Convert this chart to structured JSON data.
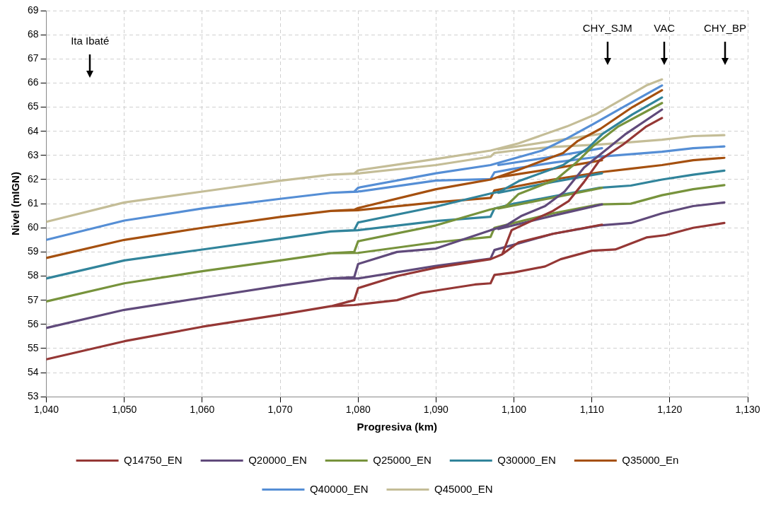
{
  "chart_data": {
    "type": "line",
    "xlabel": "Progresiva (km)",
    "ylabel": "Nivel (mIGN)",
    "xlim": [
      1040,
      1130
    ],
    "xticks": [
      {
        "value": 1040,
        "label": "1,040"
      },
      {
        "value": 1050,
        "label": "1,050"
      },
      {
        "value": 1060,
        "label": "1,060"
      },
      {
        "value": 1070,
        "label": "1,070"
      },
      {
        "value": 1080,
        "label": "1,080"
      },
      {
        "value": 1090,
        "label": "1,090"
      },
      {
        "value": 1100,
        "label": "1,100"
      },
      {
        "value": 1110,
        "label": "1,110"
      },
      {
        "value": 1120,
        "label": "1,120"
      },
      {
        "value": 1130,
        "label": "1,130"
      }
    ],
    "ylim": [
      53,
      69
    ],
    "yticks": [
      53,
      54,
      55,
      56,
      57,
      58,
      59,
      60,
      61,
      62,
      63,
      64,
      65,
      66,
      67,
      68,
      69
    ],
    "grid": true,
    "legend": "bottom",
    "marker": "none",
    "line_style": "solid",
    "ref_lines": [
      {
        "axis": "x",
        "value": 1045.6,
        "label": "Ita Ibaté"
      },
      {
        "axis": "x",
        "value": 1112,
        "label": "CHY_SJM"
      },
      {
        "axis": "x",
        "value": 1119.3,
        "label": "VAC"
      },
      {
        "axis": "x",
        "value": 1127.1,
        "label": "CHY_BP"
      }
    ],
    "series": [
      {
        "name": "Q14750_EN",
        "color": "#953735",
        "x": [
          1040,
          1050,
          1060,
          1070,
          1076.5,
          1079.5,
          1080,
          1085,
          1090,
          1097,
          1098.5,
          1099.7,
          1105,
          1107,
          1109,
          1111,
          1114,
          1117,
          1119,
          null,
          1098.5,
          1100.6,
          1105,
          1111.3,
          null,
          1076.5,
          1079.5,
          1085,
          1088,
          1090,
          1095,
          1097,
          1097.5,
          1100,
          1104,
          1106,
          1110,
          1113,
          1117,
          1119.5,
          1123,
          1127
        ],
        "values": [
          54.55,
          55.3,
          55.9,
          56.4,
          56.75,
          57.0,
          57.5,
          58.0,
          58.35,
          58.7,
          58.9,
          59.9,
          60.7,
          61.1,
          61.9,
          62.8,
          63.45,
          64.2,
          64.55,
          null,
          58.9,
          59.4,
          59.75,
          60.13,
          null,
          56.75,
          56.8,
          57.0,
          57.3,
          57.4,
          57.65,
          57.7,
          58.05,
          58.15,
          58.4,
          58.7,
          59.05,
          59.1,
          59.6,
          59.7,
          60.0,
          60.2
        ]
      },
      {
        "name": "Q20000_EN",
        "color": "#604a7b",
        "x": [
          1040,
          1050,
          1060,
          1070,
          1076.5,
          1079.5,
          1080,
          1085,
          1090,
          1097,
          1099,
          1101,
          1104,
          1106.5,
          1109,
          1111.3,
          1114.4,
          1119,
          null,
          1098,
          1105,
          1111.3,
          null,
          1076.5,
          1080,
          1090,
          1097,
          1097.5,
          1100,
          1105,
          1111,
          1115,
          1119,
          1123,
          1127
        ],
        "values": [
          55.85,
          56.6,
          57.1,
          57.6,
          57.9,
          57.95,
          58.5,
          59.0,
          59.14,
          59.9,
          60.1,
          60.5,
          60.9,
          61.5,
          62.5,
          63.1,
          63.9,
          64.9,
          null,
          59.95,
          60.5,
          60.97,
          null,
          57.9,
          57.9,
          58.42,
          58.72,
          59.08,
          59.3,
          59.75,
          60.1,
          60.2,
          60.6,
          60.9,
          61.05
        ]
      },
      {
        "name": "Q25000_EN",
        "color": "#77933c",
        "x": [
          1040,
          1050,
          1060,
          1070,
          1076.5,
          1079.5,
          1080,
          1090,
          1097,
          1099,
          1100.6,
          1105.4,
          1108,
          1110.2,
          1113.4,
          1119,
          null,
          1098,
          1105,
          1111.3,
          null,
          1076.5,
          1080,
          1090,
          1097,
          1097.5,
          1100,
          1105,
          1111,
          1115,
          1119,
          1123,
          1127
        ],
        "values": [
          56.95,
          57.7,
          58.2,
          58.65,
          58.95,
          59.0,
          59.44,
          60.1,
          60.76,
          60.9,
          61.4,
          62.0,
          62.7,
          63.4,
          64.2,
          65.17,
          null,
          60.8,
          61.25,
          61.66,
          null,
          58.95,
          58.96,
          59.4,
          59.62,
          60.0,
          60.2,
          60.6,
          60.97,
          61.0,
          61.35,
          61.6,
          61.77
        ]
      },
      {
        "name": "Q30000_EN",
        "color": "#31849b",
        "x": [
          1040,
          1050,
          1060,
          1070,
          1076.5,
          1079.5,
          1080,
          1090,
          1097,
          1098.2,
          1100.6,
          1106.3,
          1109.5,
          1111.4,
          1115.2,
          1119,
          null,
          1098,
          1105,
          1111.3,
          null,
          1076.5,
          1080,
          1090,
          1097,
          1097.5,
          1100,
          1105,
          1111,
          1115,
          1119,
          1123,
          1127
        ],
        "values": [
          57.9,
          58.65,
          59.1,
          59.55,
          59.85,
          59.9,
          60.22,
          60.88,
          61.42,
          61.5,
          61.93,
          62.6,
          63.3,
          63.9,
          64.7,
          65.4,
          null,
          61.45,
          61.9,
          62.26,
          null,
          59.85,
          59.9,
          60.28,
          60.46,
          60.8,
          61.0,
          61.3,
          61.66,
          61.75,
          62.0,
          62.2,
          62.37
        ]
      },
      {
        "name": "Q35000_En",
        "color": "#a5500f",
        "x": [
          1040,
          1050,
          1060,
          1070,
          1076.5,
          1079.5,
          1080,
          1090,
          1097,
          1100.6,
          1106.3,
          1108.2,
          1111.1,
          1115.2,
          1119,
          null,
          1098,
          1105,
          1111.3,
          null,
          1076.5,
          1080,
          1090,
          1097,
          1097.5,
          1100,
          1105,
          1111,
          1115,
          1119,
          1123,
          1127
        ],
        "values": [
          58.75,
          59.5,
          60.0,
          60.45,
          60.7,
          60.75,
          60.82,
          61.6,
          62.0,
          62.4,
          63.1,
          63.6,
          64.1,
          65.0,
          65.7,
          null,
          62.1,
          62.45,
          62.8,
          null,
          60.7,
          60.73,
          61.06,
          61.24,
          61.55,
          61.7,
          62.0,
          62.3,
          62.45,
          62.6,
          62.8,
          62.9
        ]
      },
      {
        "name": "Q40000_EN",
        "color": "#558ed5",
        "x": [
          1040,
          1050,
          1060,
          1070,
          1076.5,
          1079.5,
          1080,
          1090,
          1097,
          1103.6,
          1106.8,
          1110.2,
          1114,
          1119,
          null,
          1098,
          1105,
          1111.3,
          null,
          1076.5,
          1080,
          1090,
          1097,
          1097.5,
          1100,
          1105,
          1111,
          1115,
          1119,
          1123,
          1127
        ],
        "values": [
          59.5,
          60.3,
          60.8,
          61.2,
          61.45,
          61.5,
          61.66,
          62.26,
          62.6,
          63.2,
          63.7,
          64.3,
          65.0,
          65.9,
          null,
          62.6,
          62.95,
          63.3,
          null,
          61.45,
          61.5,
          61.96,
          62.02,
          62.3,
          62.45,
          62.7,
          62.95,
          63.05,
          63.15,
          63.3,
          63.37
        ]
      },
      {
        "name": "Q45000_EN",
        "color": "#c4bd97",
        "x": [
          1040,
          1050,
          1060,
          1070,
          1076.5,
          1079.5,
          1080,
          1090,
          1097,
          1100.6,
          1106.8,
          1110.5,
          1114.3,
          1117,
          1119,
          null,
          1098,
          1105,
          1111.3,
          null,
          1076.5,
          1080,
          1090,
          1097,
          1097.5,
          1100,
          1105,
          1111,
          1115,
          1119,
          1123,
          1127
        ],
        "values": [
          60.25,
          61.05,
          61.5,
          61.95,
          62.2,
          62.25,
          62.38,
          62.85,
          63.2,
          63.5,
          64.2,
          64.7,
          65.4,
          65.9,
          66.15,
          null,
          63.25,
          63.6,
          63.9,
          null,
          62.2,
          62.25,
          62.6,
          62.95,
          63.1,
          63.2,
          63.35,
          63.45,
          63.55,
          63.65,
          63.8,
          63.84
        ]
      }
    ]
  }
}
